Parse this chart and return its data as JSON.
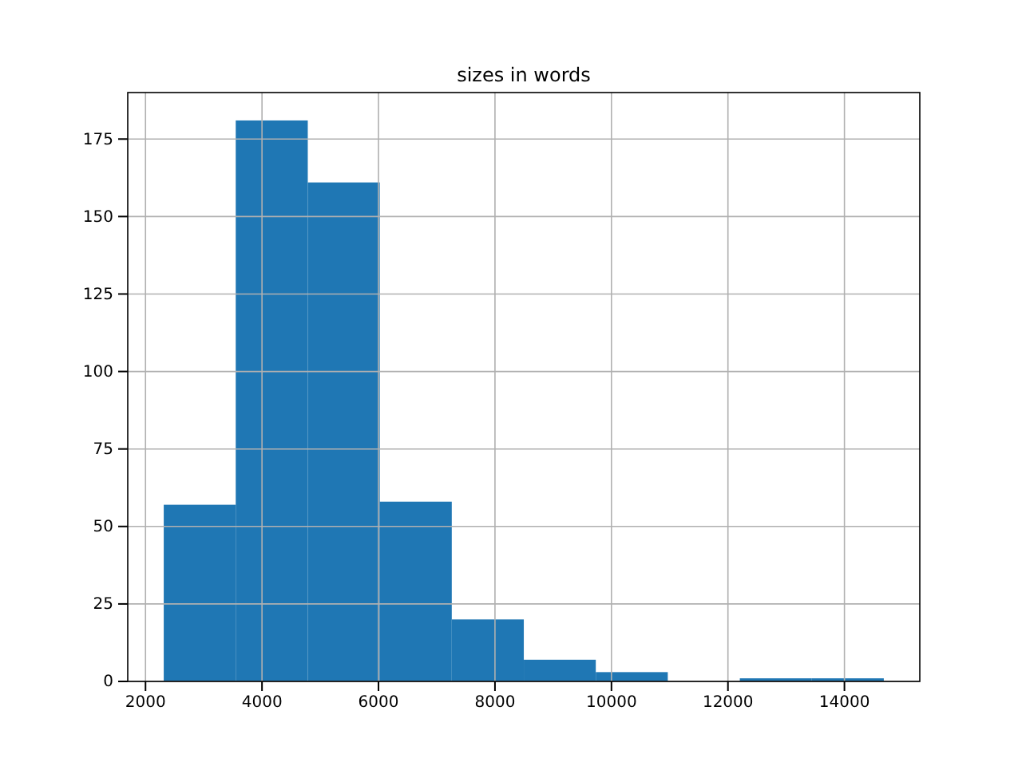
{
  "chart_data": {
    "type": "histogram",
    "title": "sizes in words",
    "bins": [
      2313,
      3549,
      4786,
      6022,
      7258,
      8495,
      9731,
      10967,
      12204,
      13440,
      14676
    ],
    "values": [
      57,
      181,
      161,
      58,
      20,
      7,
      3,
      0,
      1,
      1
    ],
    "color": "#1f77b4",
    "xlim": [
      1695,
      15294
    ],
    "xticks": [
      2000,
      4000,
      6000,
      8000,
      10000,
      12000,
      14000
    ],
    "ylim": [
      0,
      190
    ],
    "yticks": [
      0,
      25,
      50,
      75,
      100,
      125,
      150,
      175
    ],
    "grid": true
  }
}
